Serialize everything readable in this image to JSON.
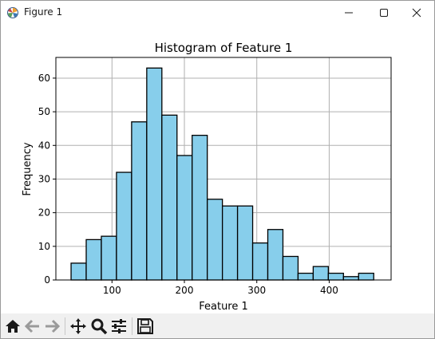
{
  "window": {
    "title": "Figure 1",
    "controls": {
      "minimize": "minimize",
      "maximize": "maximize",
      "close": "close"
    }
  },
  "toolbar": {
    "icons": [
      "home-icon",
      "back-arrow-icon",
      "forward-arrow-icon",
      "pan-icon",
      "zoom-icon",
      "configure-subplots-icon",
      "save-icon"
    ]
  },
  "colors": {
    "bar_fill": "#87ceeb",
    "bar_edge": "#000000",
    "grid": "#b0b0b0",
    "toolbar_bg": "#f0f0f0"
  },
  "chart_data": {
    "type": "bar",
    "title": "Histogram of Feature 1",
    "xlabel": "Feature 1",
    "ylabel": "Frequency",
    "bin_start": 43.5,
    "bin_width": 20.9,
    "values": [
      5,
      12,
      13,
      32,
      47,
      63,
      49,
      37,
      43,
      24,
      22,
      22,
      11,
      15,
      7,
      2,
      4,
      2,
      1,
      2
    ],
    "xlim": [
      22.5,
      485.5
    ],
    "ylim": [
      0,
      66.15
    ],
    "xticks": [
      100,
      200,
      300,
      400
    ],
    "yticks": [
      0,
      10,
      20,
      30,
      40,
      50,
      60
    ],
    "grid": true
  }
}
